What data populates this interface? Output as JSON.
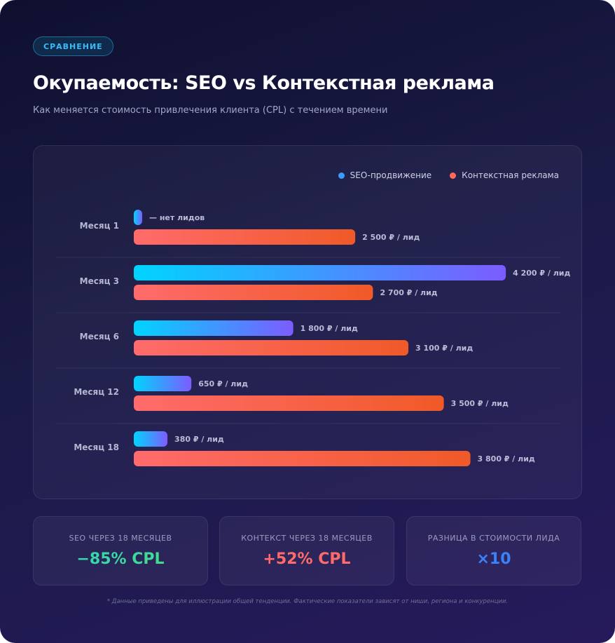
{
  "header": {
    "badge": "СРАВНЕНИЕ",
    "title": "Окупаемость: SEO vs Контекстная реклама",
    "subtitle": "Как меняется стоимость привлечения клиента (CPL) с течением времени"
  },
  "colors": {
    "seo_start": "#00d4ff",
    "seo_end": "#7c5cff",
    "ctx_start": "#ff6b6b",
    "ctx_end": "#f05a28"
  },
  "chart_data": {
    "type": "bar",
    "orientation": "horizontal",
    "categories": [
      "Месяц 1",
      "Месяц 3",
      "Месяц 6",
      "Месяц 12",
      "Месяц 18"
    ],
    "series": [
      {
        "name": "SEO-продвижение",
        "values": [
          null,
          4200,
          1800,
          650,
          380
        ],
        "labels": [
          "— нет лидов",
          "4 200 ₽ / лид",
          "1 800 ₽ / лид",
          "650 ₽ / лид",
          "380 ₽ / лид"
        ]
      },
      {
        "name": "Контекстная реклама",
        "values": [
          2500,
          2700,
          3100,
          3500,
          3800
        ],
        "labels": [
          "2 500 ₽ / лид",
          "2 700 ₽ / лид",
          "3 100 ₽ / лид",
          "3 500 ₽ / лид",
          "3 800 ₽ / лид"
        ]
      }
    ],
    "unit": "₽ / лид",
    "xlim": [
      0,
      4800
    ],
    "legend_position": "top-right"
  },
  "stats": [
    {
      "label": "SEO ЧЕРЕЗ 18 МЕСЯЦЕВ",
      "value": "−85% CPL"
    },
    {
      "label": "КОНТЕКСТ ЧЕРЕЗ 18 МЕСЯЦЕВ",
      "value": "+52% CPL"
    },
    {
      "label": "РАЗНИЦА В СТОИМОСТИ ЛИДА",
      "value": "×10"
    }
  ],
  "footnote": "* Данные приведены для иллюстрации общей тенденции. Фактические показатели зависят от ниши, региона и конкуренции."
}
